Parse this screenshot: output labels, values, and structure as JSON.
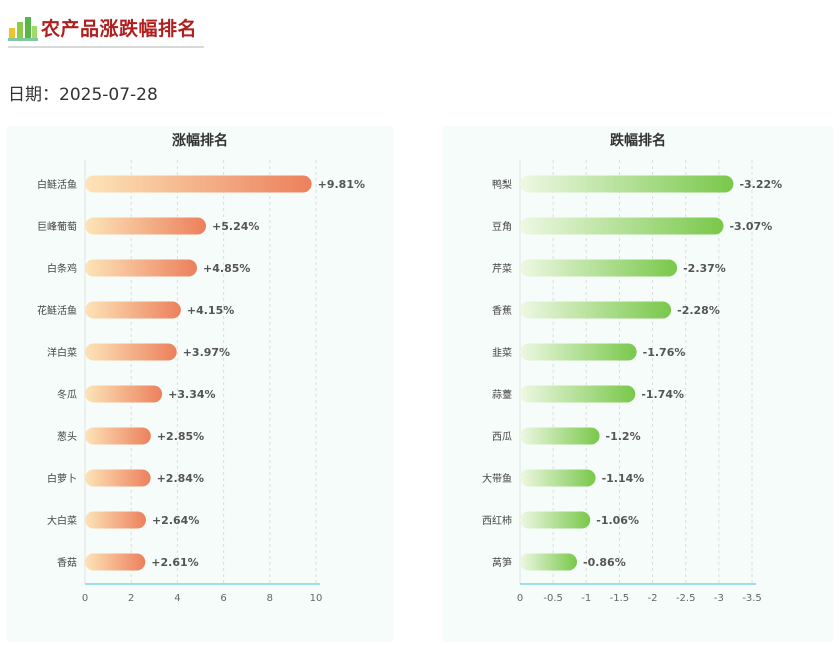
{
  "header": {
    "title": "农产品涨跌幅排名",
    "icon": "bar-chart-icon"
  },
  "date": {
    "label": "日期：2025-07-28"
  },
  "colors": {
    "rise_start": "#fde4b8",
    "rise_end": "#ec805c",
    "fall_start": "#eef8e4",
    "fall_end": "#79c84a",
    "axis": "#7fd4e6",
    "grid": "#dddddd",
    "panel_bg": "#f6fcf9"
  },
  "chart_data": [
    {
      "type": "bar",
      "orientation": "horizontal",
      "title": "涨幅排名",
      "categories": [
        "白鲢活鱼",
        "巨峰葡萄",
        "白条鸡",
        "花鲢活鱼",
        "洋白菜",
        "冬瓜",
        "葱头",
        "白萝卜",
        "大白菜",
        "香菇"
      ],
      "values": [
        9.81,
        5.24,
        4.85,
        4.15,
        3.97,
        3.34,
        2.85,
        2.84,
        2.64,
        2.61
      ],
      "labels": [
        "+9.81%",
        "+5.24%",
        "+4.85%",
        "+4.15%",
        "+3.97%",
        "+3.34%",
        "+2.85%",
        "+2.84%",
        "+2.64%",
        "+2.61%"
      ],
      "xlim": [
        0,
        10
      ],
      "xticks": [
        0,
        2,
        4,
        6,
        8,
        10
      ],
      "xtick_labels": [
        "0",
        "2",
        "4",
        "6",
        "8",
        "10"
      ],
      "grid": true
    },
    {
      "type": "bar",
      "orientation": "horizontal",
      "title": "跌幅排名",
      "categories": [
        "鸭梨",
        "豆角",
        "芹菜",
        "香蕉",
        "韭菜",
        "蒜薹",
        "西瓜",
        "大带鱼",
        "西红柿",
        "莴笋"
      ],
      "values": [
        -3.22,
        -3.07,
        -2.37,
        -2.28,
        -1.76,
        -1.74,
        -1.2,
        -1.14,
        -1.06,
        -0.86
      ],
      "labels": [
        "-3.22%",
        "-3.07%",
        "-2.37%",
        "-2.28%",
        "-1.76%",
        "-1.74%",
        "-1.2%",
        "-1.14%",
        "-1.06%",
        "-0.86%"
      ],
      "xlim": [
        0,
        -3.5
      ],
      "xticks": [
        0,
        -0.5,
        -1,
        -1.5,
        -2,
        -2.5,
        -3,
        -3.5
      ],
      "xtick_labels": [
        "0",
        "-0.5",
        "-1",
        "-1.5",
        "-2",
        "-2.5",
        "-3",
        "-3.5"
      ],
      "grid": true
    }
  ]
}
